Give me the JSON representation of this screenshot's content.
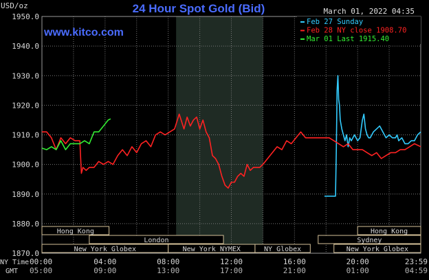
{
  "header": {
    "units": "USD/oz",
    "title": "24 Hour Spot Gold (Bid)",
    "timestamp": "March 01, 2022 04:35",
    "watermark": "www.kitco.com"
  },
  "legend": [
    {
      "text": "Feb 27 Sunday",
      "color": "#33ccff"
    },
    {
      "text": "Feb 28 NY close 1908.70",
      "color": "#ff2222"
    },
    {
      "text": "Mar 01 Last 1915.40",
      "color": "#33ee33"
    }
  ],
  "footer": {
    "ny_time_label": "NY Time",
    "gmt_label": "GMT"
  },
  "sessions": [
    {
      "name": "Hong Kong",
      "row": 1,
      "start": 0.0,
      "end": 4.25
    },
    {
      "name": "Hong Kong",
      "row": 1,
      "start": 20.0,
      "end": 24.0
    },
    {
      "name": "London",
      "row": 2,
      "start": 3.0,
      "end": 11.5
    },
    {
      "name": "Sydney",
      "row": 2,
      "start": 17.5,
      "end": 24.0
    },
    {
      "name": "New York Globex",
      "row": 3,
      "start": 0.0,
      "end": 8.0
    },
    {
      "name": "New York NYMEX",
      "row": 3,
      "start": 8.0,
      "end": 13.5
    },
    {
      "name": "NY Globex",
      "row": 3,
      "start": 13.5,
      "end": 17.0
    },
    {
      "name": "New York Globex",
      "row": 3,
      "start": 18.5,
      "end": 24.0
    }
  ],
  "colors": {
    "background": "#000000",
    "grid": "#7a7a7a",
    "axis_text": "#d8d8d8",
    "title": "#4a6cff",
    "shaded_band": "#1f2b24",
    "session_fill": "#000000",
    "session_border": "#d6c29a"
  },
  "chart_data": {
    "type": "line",
    "title": "24 Hour Spot Gold (Bid)",
    "ylabel": "USD/oz",
    "ylim": [
      1870,
      1950
    ],
    "xlim": [
      0,
      24
    ],
    "y_ticks": [
      "1870.0",
      "1880.0",
      "1890.0",
      "1900.0",
      "1910.0",
      "1920.0",
      "1930.0",
      "1940.0",
      "1950.0"
    ],
    "y_tick_values": [
      1870,
      1880,
      1890,
      1900,
      1910,
      1920,
      1930,
      1940,
      1950
    ],
    "x_ticks_ny": [
      "00:00",
      "04:00",
      "08:00",
      "12:00",
      "16:00",
      "20:00",
      "23:59"
    ],
    "x_ticks_gmt": [
      "05:00",
      "09:00",
      "13:00",
      "17:00",
      "21:00",
      "01:00",
      "04:59"
    ],
    "x_tick_values": [
      0,
      4,
      8,
      12,
      16,
      20,
      24
    ],
    "grid": true,
    "shaded_region": [
      8.5,
      14.0
    ],
    "series": [
      {
        "name": "Feb 27 Sunday",
        "color": "#33ccff",
        "x": [
          17.9,
          18.6,
          18.65,
          18.7,
          18.75,
          18.8,
          18.85,
          18.9,
          19.0,
          19.1,
          19.2,
          19.3,
          19.4,
          19.5,
          19.6,
          19.8,
          20.0,
          20.15,
          20.3,
          20.4,
          20.5,
          20.6,
          20.7,
          20.8,
          21.0,
          21.2,
          21.4,
          21.6,
          21.8,
          22.0,
          22.2,
          22.4,
          22.5,
          22.6,
          22.8,
          23.0,
          23.2,
          23.4,
          23.6,
          23.8,
          24.0
        ],
        "y": [
          1889.3,
          1889.3,
          1905,
          1925,
          1930,
          1922,
          1920,
          1915,
          1912,
          1910,
          1908,
          1910,
          1906,
          1909,
          1908,
          1910,
          1908,
          1909,
          1915,
          1917,
          1912,
          1910,
          1909,
          1909,
          1911,
          1912,
          1913,
          1911,
          1909,
          1910,
          1909,
          1909,
          1910,
          1908,
          1909,
          1907,
          1907,
          1908,
          1908,
          1910,
          1911
        ]
      },
      {
        "name": "Feb 28 NY close 1908.70",
        "color": "#ff2222",
        "x": [
          0.0,
          0.3,
          0.6,
          0.9,
          1.2,
          1.5,
          1.8,
          2.1,
          2.4,
          2.5,
          2.6,
          2.8,
          3.0,
          3.3,
          3.6,
          3.9,
          4.2,
          4.5,
          4.8,
          5.1,
          5.4,
          5.7,
          6.0,
          6.3,
          6.6,
          6.9,
          7.2,
          7.5,
          7.8,
          8.1,
          8.4,
          8.7,
          9.0,
          9.2,
          9.4,
          9.6,
          9.8,
          10.0,
          10.2,
          10.4,
          10.6,
          10.8,
          11.0,
          11.2,
          11.4,
          11.6,
          11.8,
          12.0,
          12.2,
          12.4,
          12.6,
          12.8,
          13.0,
          13.2,
          13.4,
          13.6,
          13.8,
          14.0,
          14.3,
          14.6,
          14.9,
          15.2,
          15.5,
          15.8,
          16.1,
          16.4,
          16.7,
          17.0,
          17.3,
          17.6,
          17.9,
          18.2,
          18.5,
          18.8,
          19.1,
          19.4,
          19.7,
          20.0,
          20.3,
          20.6,
          20.9,
          21.2,
          21.5,
          21.8,
          22.1,
          22.4,
          22.7,
          23.0,
          23.3,
          23.6,
          24.0
        ],
        "y": [
          1911,
          1911,
          1909,
          1905,
          1909,
          1907,
          1909,
          1908,
          1908,
          1897,
          1899,
          1898,
          1899,
          1899,
          1901,
          1900,
          1901,
          1900,
          1903,
          1905,
          1903,
          1906,
          1904,
          1907,
          1908,
          1906,
          1910,
          1911,
          1910,
          1911,
          1912,
          1917,
          1912,
          1916,
          1913,
          1915,
          1916,
          1912,
          1915,
          1911,
          1909,
          1903,
          1902,
          1900,
          1896,
          1893,
          1892,
          1894,
          1894,
          1896,
          1897,
          1896,
          1900,
          1898,
          1899,
          1899,
          1899,
          1900,
          1902,
          1904,
          1906,
          1905,
          1908,
          1907,
          1909,
          1911,
          1909,
          1909,
          1909,
          1909,
          1909,
          1909,
          1908,
          1907,
          1906,
          1907,
          1905,
          1905,
          1905,
          1904,
          1903,
          1904,
          1902,
          1903,
          1904,
          1904,
          1905,
          1905,
          1906,
          1907,
          1906
        ]
      },
      {
        "name": "Mar 01 Last 1915.40",
        "color": "#33ee33",
        "x": [
          0.0,
          0.3,
          0.6,
          0.9,
          1.2,
          1.5,
          1.8,
          2.1,
          2.4,
          2.7,
          3.0,
          3.3,
          3.6,
          3.9,
          4.2,
          4.35
        ],
        "y": [
          1905.5,
          1905,
          1906,
          1905,
          1908,
          1905,
          1907,
          1907,
          1907,
          1908,
          1907,
          1911,
          1911,
          1913,
          1915,
          1915.4
        ]
      }
    ]
  }
}
